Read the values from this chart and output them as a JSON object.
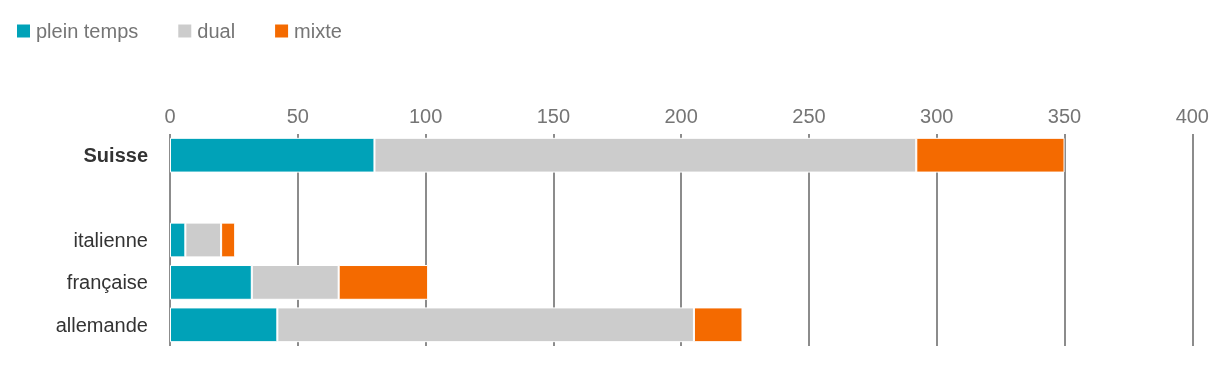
{
  "chart_data": {
    "type": "bar",
    "orientation": "horizontal",
    "stacked": true,
    "categories": [
      "Suisse",
      null,
      "italienne",
      "française",
      "allemande"
    ],
    "series": [
      {
        "name": "plein temps",
        "color": "#00a2b8",
        "values": [
          80,
          null,
          6,
          32,
          42
        ]
      },
      {
        "name": "dual",
        "color": "#cccccc",
        "values": [
          212,
          null,
          14,
          34,
          163
        ]
      },
      {
        "name": "mixte",
        "color": "#f46a00",
        "values": [
          58,
          null,
          5.5,
          35,
          19
        ]
      }
    ],
    "xlim": [
      0,
      400
    ],
    "xticks": [
      0,
      50,
      100,
      150,
      200,
      250,
      300,
      350,
      400
    ],
    "grid": "x",
    "legend": "top left"
  }
}
